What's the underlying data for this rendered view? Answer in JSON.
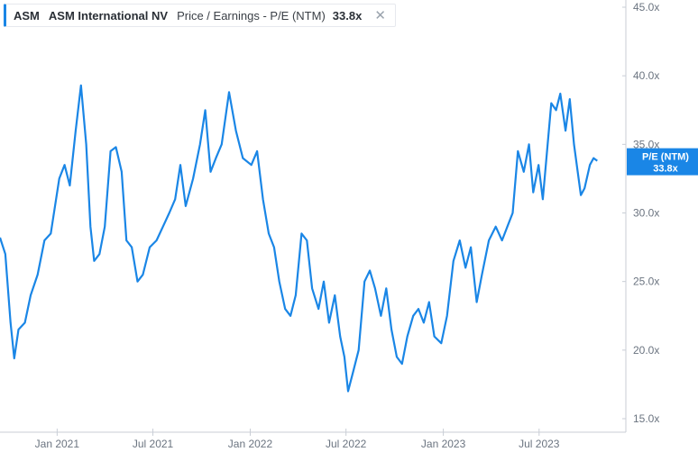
{
  "legend": {
    "ticker": "ASM",
    "company": "ASM International NV",
    "metric": "Price / Earnings - P/E (NTM)",
    "value": "33.8x",
    "close_icon": "close-icon"
  },
  "colors": {
    "line": "#1a86e6",
    "tag_bg": "#1a86e6",
    "axis": "#c9ced6",
    "text": "#6b7480"
  },
  "chart_data": {
    "type": "line",
    "ylim": [
      15,
      45
    ],
    "y_tick_values": [
      15,
      20,
      25,
      30,
      35,
      40,
      45
    ],
    "y_tick_labels": [
      "15.0x",
      "20.0x",
      "25.0x",
      "30.0x",
      "35.0x",
      "40.0x",
      "45.0x"
    ],
    "xlim": [
      "2020-09-15",
      "2023-12-12"
    ],
    "x_tick_dates": [
      "2021-01-01",
      "2021-07-01",
      "2022-01-01",
      "2022-07-01",
      "2023-01-01",
      "2023-07-01"
    ],
    "x_tick_labels": [
      "Jan 2021",
      "Jul 2021",
      "Jan 2022",
      "Jul 2022",
      "Jan 2023",
      "Jul 2023"
    ],
    "series": [
      {
        "label": "P/E (NTM)",
        "last_value_label": "33.8x",
        "points": [
          [
            "2020-09-15",
            28.2
          ],
          [
            "2020-09-25",
            27.0
          ],
          [
            "2020-10-05",
            22.0
          ],
          [
            "2020-10-12",
            19.4
          ],
          [
            "2020-10-20",
            21.5
          ],
          [
            "2020-11-01",
            22.0
          ],
          [
            "2020-11-12",
            24.0
          ],
          [
            "2020-11-25",
            25.5
          ],
          [
            "2020-12-08",
            28.0
          ],
          [
            "2020-12-20",
            28.5
          ],
          [
            "2021-01-05",
            32.5
          ],
          [
            "2021-01-15",
            33.5
          ],
          [
            "2021-01-25",
            32.0
          ],
          [
            "2021-02-05",
            36.0
          ],
          [
            "2021-02-15",
            39.3
          ],
          [
            "2021-02-25",
            35.0
          ],
          [
            "2021-03-05",
            29.0
          ],
          [
            "2021-03-12",
            26.5
          ],
          [
            "2021-03-22",
            27.0
          ],
          [
            "2021-04-01",
            29.0
          ],
          [
            "2021-04-12",
            34.5
          ],
          [
            "2021-04-22",
            34.8
          ],
          [
            "2021-05-03",
            33.0
          ],
          [
            "2021-05-12",
            28.0
          ],
          [
            "2021-05-22",
            27.5
          ],
          [
            "2021-06-02",
            25.0
          ],
          [
            "2021-06-12",
            25.5
          ],
          [
            "2021-06-25",
            27.5
          ],
          [
            "2021-07-08",
            28.0
          ],
          [
            "2021-07-20",
            29.0
          ],
          [
            "2021-08-01",
            30.0
          ],
          [
            "2021-08-12",
            31.0
          ],
          [
            "2021-08-22",
            33.5
          ],
          [
            "2021-09-01",
            30.5
          ],
          [
            "2021-09-15",
            32.5
          ],
          [
            "2021-09-28",
            35.0
          ],
          [
            "2021-10-08",
            37.5
          ],
          [
            "2021-10-18",
            33.0
          ],
          [
            "2021-10-28",
            34.0
          ],
          [
            "2021-11-08",
            35.0
          ],
          [
            "2021-11-22",
            38.8
          ],
          [
            "2021-12-05",
            36.0
          ],
          [
            "2021-12-18",
            34.0
          ],
          [
            "2022-01-03",
            33.5
          ],
          [
            "2022-01-14",
            34.5
          ],
          [
            "2022-01-25",
            31.0
          ],
          [
            "2022-02-05",
            28.5
          ],
          [
            "2022-02-15",
            27.5
          ],
          [
            "2022-02-25",
            25.0
          ],
          [
            "2022-03-08",
            23.0
          ],
          [
            "2022-03-18",
            22.5
          ],
          [
            "2022-03-28",
            24.0
          ],
          [
            "2022-04-08",
            28.5
          ],
          [
            "2022-04-18",
            28.0
          ],
          [
            "2022-04-28",
            24.5
          ],
          [
            "2022-05-10",
            23.0
          ],
          [
            "2022-05-20",
            25.0
          ],
          [
            "2022-05-30",
            22.0
          ],
          [
            "2022-06-10",
            24.0
          ],
          [
            "2022-06-20",
            21.0
          ],
          [
            "2022-06-28",
            19.5
          ],
          [
            "2022-07-05",
            17.0
          ],
          [
            "2022-07-15",
            18.5
          ],
          [
            "2022-07-25",
            20.0
          ],
          [
            "2022-08-05",
            25.0
          ],
          [
            "2022-08-15",
            25.8
          ],
          [
            "2022-08-25",
            24.5
          ],
          [
            "2022-09-05",
            22.5
          ],
          [
            "2022-09-15",
            24.5
          ],
          [
            "2022-09-25",
            21.5
          ],
          [
            "2022-10-05",
            19.5
          ],
          [
            "2022-10-15",
            19.0
          ],
          [
            "2022-10-25",
            21.0
          ],
          [
            "2022-11-05",
            22.5
          ],
          [
            "2022-11-15",
            23.0
          ],
          [
            "2022-11-25",
            22.0
          ],
          [
            "2022-12-05",
            23.5
          ],
          [
            "2022-12-15",
            21.0
          ],
          [
            "2022-12-28",
            20.5
          ],
          [
            "2023-01-08",
            22.5
          ],
          [
            "2023-01-20",
            26.5
          ],
          [
            "2023-02-01",
            28.0
          ],
          [
            "2023-02-12",
            26.0
          ],
          [
            "2023-02-22",
            27.5
          ],
          [
            "2023-03-05",
            23.5
          ],
          [
            "2023-03-15",
            25.5
          ],
          [
            "2023-03-28",
            28.0
          ],
          [
            "2023-04-10",
            29.0
          ],
          [
            "2023-04-22",
            28.0
          ],
          [
            "2023-05-02",
            29.0
          ],
          [
            "2023-05-12",
            30.0
          ],
          [
            "2023-05-22",
            34.5
          ],
          [
            "2023-06-02",
            33.0
          ],
          [
            "2023-06-12",
            35.0
          ],
          [
            "2023-06-20",
            31.5
          ],
          [
            "2023-06-30",
            33.5
          ],
          [
            "2023-07-08",
            31.0
          ],
          [
            "2023-07-16",
            34.5
          ],
          [
            "2023-07-24",
            38.0
          ],
          [
            "2023-08-02",
            37.5
          ],
          [
            "2023-08-10",
            38.7
          ],
          [
            "2023-08-20",
            36.0
          ],
          [
            "2023-08-28",
            38.3
          ],
          [
            "2023-09-05",
            35.0
          ],
          [
            "2023-09-12",
            33.0
          ],
          [
            "2023-09-18",
            31.3
          ],
          [
            "2023-09-25",
            31.8
          ],
          [
            "2023-10-05",
            33.5
          ],
          [
            "2023-10-12",
            34.0
          ],
          [
            "2023-10-19",
            33.8
          ]
        ]
      }
    ],
    "grid": false
  }
}
